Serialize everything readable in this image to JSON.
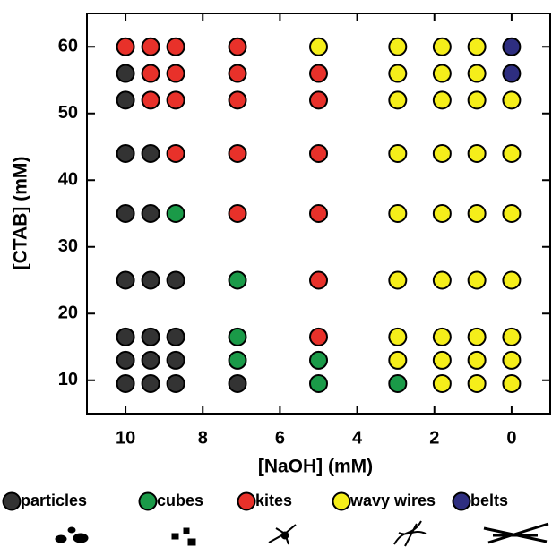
{
  "chart_data": {
    "type": "scatter",
    "xlabel": "[NaOH] (mM)",
    "ylabel": "[CTAB] (mM)",
    "xlim": [
      11,
      -1
    ],
    "ylim": [
      5,
      65
    ],
    "xticks": [
      10,
      8,
      6,
      4,
      2,
      0
    ],
    "yticks": [
      10,
      20,
      30,
      40,
      50,
      60
    ],
    "series": [
      {
        "name": "particles",
        "color": "#333333",
        "x": [
          10,
          10,
          10,
          9.35,
          10,
          9.35,
          10,
          9.35,
          8.7,
          10,
          9.35,
          8.7,
          10,
          9.35,
          8.7,
          10,
          9.35,
          8.7,
          7.1
        ],
        "values": [
          56,
          52,
          44,
          44,
          35,
          35,
          25,
          25,
          25,
          16.5,
          16.5,
          16.5,
          13,
          13,
          13,
          9.5,
          9.5,
          9.5,
          9.5
        ]
      },
      {
        "name": "cubes",
        "color": "#1a9a48",
        "x": [
          8.7,
          7.1,
          7.1,
          7.1,
          5,
          5,
          2.95
        ],
        "values": [
          35,
          25,
          16.5,
          13,
          13,
          9.5,
          9.5
        ]
      },
      {
        "name": "kites",
        "color": "#e8312a",
        "x": [
          10,
          9.35,
          8.7,
          7.1,
          9.35,
          8.7,
          7.1,
          5,
          9.35,
          8.7,
          7.1,
          5,
          8.7,
          7.1,
          5,
          7.1,
          5,
          5,
          5
        ],
        "values": [
          60,
          60,
          60,
          60,
          56,
          56,
          56,
          56,
          52,
          52,
          52,
          52,
          44,
          44,
          44,
          35,
          35,
          25,
          16.5
        ]
      },
      {
        "name": "wavy wires",
        "color": "#f5ee1a",
        "x": [
          5,
          2.95,
          1.8,
          0.9,
          2.95,
          1.8,
          0.9,
          2.95,
          1.8,
          0.9,
          0,
          2.95,
          1.8,
          0.9,
          0,
          2.95,
          1.8,
          0.9,
          0,
          2.95,
          1.8,
          0.9,
          0,
          2.95,
          1.8,
          0.9,
          0,
          2.95,
          1.8,
          0.9,
          0,
          1.8,
          0.9,
          0
        ],
        "values": [
          60,
          60,
          60,
          60,
          56,
          56,
          56,
          52,
          52,
          52,
          52,
          44,
          44,
          44,
          44,
          35,
          35,
          35,
          35,
          25,
          25,
          25,
          25,
          16.5,
          16.5,
          16.5,
          16.5,
          13,
          13,
          13,
          13,
          9.5,
          9.5,
          9.5
        ]
      },
      {
        "name": "belts",
        "color": "#2e2e80",
        "x": [
          0,
          0
        ],
        "values": [
          60,
          56
        ]
      }
    ]
  }
}
